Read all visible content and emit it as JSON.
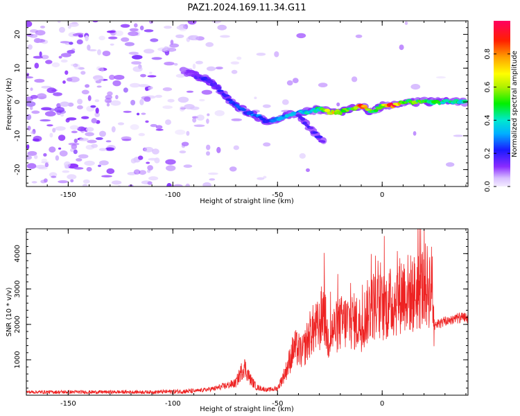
{
  "title": "PAZ1.2024.169.11.34.G11",
  "chart_data": [
    {
      "type": "heatmap",
      "xlabel": "Height of straight line (km)",
      "ylabel": "Frequency (Hz)",
      "xlim": [
        -170,
        41
      ],
      "ylim": [
        -25,
        24
      ],
      "xticks": [
        -150,
        -100,
        -50,
        0
      ],
      "yticks": [
        -20,
        -10,
        0,
        10,
        20
      ],
      "colorbar": {
        "label": "Normalized spectral amplitude",
        "range": [
          0,
          1
        ],
        "ticks": [
          "0.0",
          "0.2",
          "0.4",
          "0.6",
          "0.8"
        ]
      },
      "ridge": {
        "x": [
          -95,
          -90,
          -85,
          -80,
          -75,
          -70,
          -65,
          -60,
          -55,
          -50,
          -45,
          -40,
          -35,
          -30,
          -25,
          -20,
          -15,
          -10,
          -5,
          0,
          5,
          10,
          15,
          20,
          25,
          30,
          35,
          40
        ],
        "y": [
          9,
          8,
          7,
          5,
          2,
          -1,
          -3,
          -4,
          -6,
          -5,
          -4,
          -3,
          -3,
          -2,
          -3,
          -3,
          -2,
          -1,
          -3,
          -1,
          -1,
          0,
          0,
          0,
          0,
          0,
          0,
          0
        ],
        "amplitude": [
          0.1,
          0.15,
          0.2,
          0.2,
          0.2,
          0.25,
          0.25,
          0.3,
          0.25,
          0.3,
          0.35,
          0.35,
          0.4,
          0.45,
          0.8,
          0.6,
          0.5,
          0.9,
          0.5,
          0.55,
          0.95,
          0.6,
          0.55,
          0.5,
          0.5,
          0.45,
          0.45,
          0.45
        ]
      },
      "tail": {
        "x": [
          -40,
          -37,
          -34,
          -31,
          -28
        ],
        "y": [
          -4,
          -6,
          -8,
          -10,
          -12
        ]
      }
    },
    {
      "type": "line",
      "xlabel": "Height of straight line (km)",
      "ylabel": "SNR (10 * v/v)",
      "xlim": [
        -170,
        41
      ],
      "ylim": [
        0,
        4700
      ],
      "xticks": [
        -150,
        -100,
        -50,
        0
      ],
      "yticks": [
        1000,
        2000,
        3000,
        4000
      ],
      "color": "#ee2222",
      "envelope": {
        "x": [
          -170,
          -110,
          -90,
          -80,
          -70,
          -66,
          -63,
          -60,
          -55,
          -50,
          -46,
          -42,
          -38,
          -34,
          -30,
          -28,
          -26,
          -24,
          -20,
          -15,
          -10,
          -5,
          0,
          5,
          10,
          15,
          20,
          24,
          25,
          30,
          35,
          41
        ],
        "y": [
          100,
          100,
          150,
          250,
          450,
          1100,
          600,
          300,
          200,
          250,
          900,
          1800,
          1600,
          2400,
          2600,
          3300,
          2100,
          2400,
          2700,
          2800,
          2700,
          3400,
          3300,
          3500,
          3900,
          3800,
          4100,
          4100,
          2000,
          2100,
          2200,
          2200
        ]
      }
    }
  ]
}
